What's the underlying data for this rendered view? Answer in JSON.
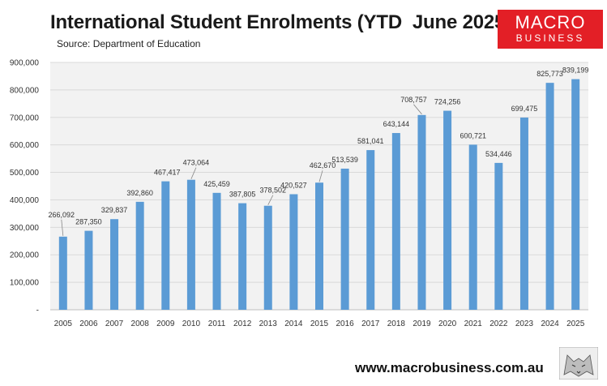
{
  "header": {
    "title": "International Student Enrolments (YTD  June 2025)",
    "source": "Source: Department of Education"
  },
  "logo": {
    "line1": "MACRO",
    "line2": "BUSINESS",
    "color": "#e31f26"
  },
  "footer": {
    "url": "www.macrobusiness.com.au"
  },
  "colors": {
    "bar": "#5b9bd5",
    "plot_bg": "#f2f2f2"
  },
  "chart_data": {
    "type": "bar",
    "title": "International Student Enrolments (YTD  June 2025)",
    "xlabel": "",
    "ylabel": "",
    "ylim": [
      0,
      900000
    ],
    "y_ticks": [
      0,
      100000,
      200000,
      300000,
      400000,
      500000,
      600000,
      700000,
      800000,
      900000
    ],
    "y_tick_labels": [
      "-",
      "100,000",
      "200,000",
      "300,000",
      "400,000",
      "500,000",
      "600,000",
      "700,000",
      "800,000",
      "900,000"
    ],
    "categories": [
      "2005",
      "2006",
      "2007",
      "2008",
      "2009",
      "2010",
      "2011",
      "2012",
      "2013",
      "2014",
      "2015",
      "2016",
      "2017",
      "2018",
      "2019",
      "2020",
      "2021",
      "2022",
      "2023",
      "2024",
      "2025"
    ],
    "values": [
      266092,
      287350,
      329837,
      392860,
      467417,
      473064,
      425459,
      387805,
      378502,
      420527,
      462670,
      513539,
      581041,
      643144,
      708757,
      724256,
      600721,
      534446,
      699475,
      825773,
      839199
    ],
    "value_labels": [
      "266,092",
      "287,350",
      "329,837",
      "392,860",
      "467,417",
      "473,064",
      "425,459",
      "387,805",
      "378,502",
      "420,527",
      "462,670",
      "513,539",
      "581,041",
      "643,144",
      "708,757",
      "724,256",
      "600,721",
      "534,446",
      "699,475",
      "825,773",
      "839,199"
    ]
  }
}
